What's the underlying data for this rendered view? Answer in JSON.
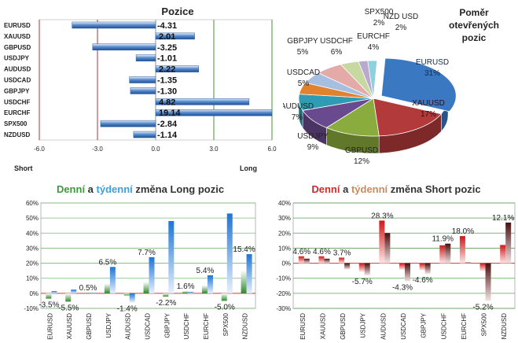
{
  "chart_data": [
    {
      "type": "bar",
      "orientation": "horizontal",
      "title": "Pozice",
      "categories": [
        "EURUSD",
        "XAUUSD",
        "GBPUSD",
        "USDJPY",
        "AUDUSD",
        "USDCAD",
        "GBPJPY",
        "USDCHF",
        "EURCHF",
        "SPX500",
        "NZDUSD"
      ],
      "values": [
        -4.31,
        2.01,
        -3.25,
        -1.01,
        2.22,
        -1.35,
        -1.3,
        4.82,
        19.14,
        -2.84,
        -1.14
      ],
      "value_labels": [
        "-4.31",
        "2.01",
        "-3.25",
        "-1.01",
        "2.22",
        "-1.35",
        "-1.30",
        "4.82",
        "19.14",
        "-2.84",
        "-1.14"
      ],
      "xlim": [
        -6,
        6
      ],
      "xticks": [
        "-6.0",
        "-3.0",
        "0.0",
        "3.0",
        "6.0"
      ],
      "xlabel_left": "Short",
      "xlabel_right": "Long",
      "grid": true,
      "colors": {
        "bar": "#3f73b8",
        "bar_light": "#c8d8ee",
        "grid_short": "#b03030",
        "grid_long": "#4a8f3a"
      }
    },
    {
      "type": "pie",
      "title": "Poměr otevřených pozic",
      "categories": [
        "EURUSD",
        "XAUUSD",
        "GBPUSD",
        "USDJPY",
        "AUDUSD",
        "USDCAD",
        "GBPJPY",
        "USDCHF",
        "EURCHF",
        "SPX500",
        "NZD USD"
      ],
      "values": [
        31,
        17,
        12,
        9,
        7,
        5,
        5,
        6,
        4,
        2,
        2
      ],
      "value_labels": [
        "31%",
        "17%",
        "12%",
        "9%",
        "7%",
        "5%",
        "5%",
        "6%",
        "4%",
        "2%",
        "2%"
      ],
      "colors": [
        "#3a78c2",
        "#b33a3a",
        "#8aac3e",
        "#6a4a8e",
        "#2f9cb3",
        "#e0822e",
        "#a6bfe0",
        "#e4aaa8",
        "#c7d8a0",
        "#b9a9cf",
        "#8fd0e0"
      ]
    },
    {
      "type": "bar",
      "title_parts": [
        "Denní",
        " a ",
        "týdenní",
        " změna Long pozic"
      ],
      "title_colors": [
        "#3c9a3c",
        "#333333",
        "#3aa0e0",
        "#333333"
      ],
      "categories": [
        "EURUSD",
        "XAUUSD",
        "GBPUSD",
        "USDJPY",
        "AUDUSD",
        "USDCAD",
        "GBPJPY",
        "USDCHF",
        "EURCHF",
        "SPX500",
        "NZDUSD"
      ],
      "series": [
        {
          "name": "Denní",
          "values": [
            -3.5,
            -5.5,
            0.5,
            6.5,
            -1.4,
            7.7,
            -2.2,
            1.6,
            5.4,
            -5.0,
            15.4
          ]
        },
        {
          "name": "týdenní",
          "values": [
            1.5,
            2.5,
            0.5,
            17.5,
            -6.0,
            24.0,
            48.0,
            1.0,
            12.0,
            53.0,
            26.0
          ]
        }
      ],
      "value_labels": [
        "-3.5%",
        "-5.5%",
        "0.5%",
        "6.5%",
        "-1.4%",
        "7.7%",
        "-2.2%",
        "1.6%",
        "5.4%",
        "-5.0%",
        "15.4%"
      ],
      "ylim": [
        -10,
        60
      ],
      "yticks": [
        "-10%",
        "0%",
        "10%",
        "20%",
        "30%",
        "40%",
        "50%",
        "60%"
      ],
      "grid": true,
      "colors": {
        "daily": "#3c8a3c",
        "weekly": "#3a8fe0",
        "grid": "#7ab87a",
        "zero": "#c04040"
      }
    },
    {
      "type": "bar",
      "title_parts": [
        "Denní",
        " a ",
        "týdenní",
        " změna Short pozic"
      ],
      "title_colors": [
        "#d02a2a",
        "#333333",
        "#c88a60",
        "#333333"
      ],
      "categories": [
        "EURUSD",
        "XAUUSD",
        "GBPUSD",
        "USDJPY",
        "AUDUSD",
        "USDCAD",
        "GBPJPY",
        "USDCHF",
        "EURCHF",
        "SPX500",
        "NZDUSD"
      ],
      "series": [
        {
          "name": "Denní",
          "values": [
            4.6,
            4.6,
            3.7,
            -5.7,
            28.3,
            -4.3,
            -4.6,
            11.9,
            18.0,
            -5.2,
            12.1
          ]
        },
        {
          "name": "týdenní",
          "values": [
            3.0,
            3.0,
            -4.0,
            -8.0,
            20.0,
            -12.0,
            -7.0,
            13.0,
            0.5,
            -25.0,
            27.0
          ]
        }
      ],
      "value_labels": [
        "4.6%",
        "4.6%",
        "3.7%",
        "-5.7%",
        "28.3%",
        "-4.3%",
        "-4.6%",
        "11.9%",
        "18.0%",
        "-5.2%",
        "12.1%"
      ],
      "ylim": [
        -30,
        40
      ],
      "yticks": [
        "-30%",
        "-20%",
        "-10%",
        "0%",
        "10%",
        "20%",
        "30%",
        "40%"
      ],
      "grid": true,
      "colors": {
        "daily": "#c82020",
        "weekly": "#5a2020",
        "grid": "#5aa05a",
        "zero": "#c04040"
      }
    }
  ]
}
